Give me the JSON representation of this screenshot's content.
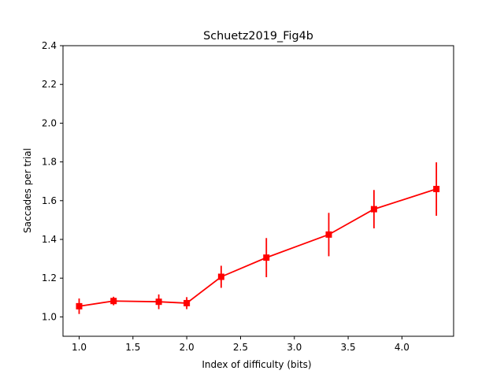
{
  "chart_data": {
    "type": "line",
    "title": "Schuetz2019_Fig4b",
    "xlabel": "Index of difficulty (bits)",
    "ylabel": "Saccades per trial",
    "xlim": [
      0.85,
      4.48
    ],
    "ylim": [
      0.9,
      2.4
    ],
    "xticks": [
      1.0,
      1.5,
      2.0,
      2.5,
      3.0,
      3.5,
      4.0
    ],
    "xtick_labels": [
      "1.0",
      "1.5",
      "2.0",
      "2.5",
      "3.0",
      "3.5",
      "4.0"
    ],
    "yticks": [
      1.0,
      1.2,
      1.4,
      1.6,
      1.8,
      2.0,
      2.2,
      2.4
    ],
    "ytick_labels": [
      "1.0",
      "1.2",
      "1.4",
      "1.6",
      "1.8",
      "2.0",
      "2.2",
      "2.4"
    ],
    "grid": false,
    "series": [
      {
        "color": "#ff0000",
        "marker": "square",
        "points": [
          {
            "x": 1.0,
            "y": 1.055,
            "err_low": 1.015,
            "err_high": 1.095
          },
          {
            "x": 1.32,
            "y": 1.082,
            "err_low": 1.06,
            "err_high": 1.104
          },
          {
            "x": 1.74,
            "y": 1.078,
            "err_low": 1.04,
            "err_high": 1.116
          },
          {
            "x": 2.0,
            "y": 1.071,
            "err_low": 1.04,
            "err_high": 1.102
          },
          {
            "x": 2.32,
            "y": 1.207,
            "err_low": 1.15,
            "err_high": 1.264
          },
          {
            "x": 2.74,
            "y": 1.306,
            "err_low": 1.205,
            "err_high": 1.407
          },
          {
            "x": 3.32,
            "y": 1.425,
            "err_low": 1.313,
            "err_high": 1.537
          },
          {
            "x": 3.74,
            "y": 1.556,
            "err_low": 1.457,
            "err_high": 1.655
          },
          {
            "x": 4.32,
            "y": 1.66,
            "err_low": 1.522,
            "err_high": 1.798
          }
        ]
      }
    ]
  }
}
